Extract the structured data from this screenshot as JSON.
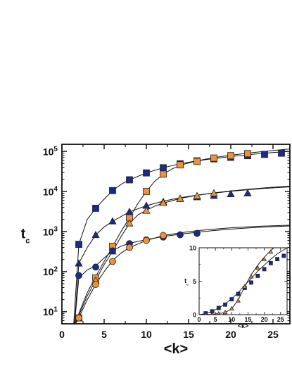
{
  "chart_data": [
    {
      "type": "scatter",
      "xlabel": "<k>",
      "ylabel_main": "t",
      "ylabel_sub": "c",
      "yscale": "log",
      "xlim": [
        0,
        27
      ],
      "ylim": [
        5,
        150000
      ],
      "x_ticks": [
        0,
        5,
        10,
        15,
        20,
        25
      ],
      "x_tick_labels": [
        "0",
        "5",
        "10",
        "15",
        "20",
        "25"
      ],
      "y_ticks": [
        10,
        100,
        1000,
        10000,
        100000
      ],
      "y_tick_labels": [
        {
          "base": "10",
          "exp": "1"
        },
        {
          "base": "10",
          "exp": "2"
        },
        {
          "base": "10",
          "exp": "3"
        },
        {
          "base": "10",
          "exp": "4"
        },
        {
          "base": "10",
          "exp": "5"
        }
      ],
      "series": [
        {
          "marker": "square",
          "color": "#1a2a8c",
          "points": [
            [
              2,
              480
            ],
            [
              4,
              3800
            ],
            [
              6,
              10500
            ],
            [
              8,
              19500
            ],
            [
              10,
              29000
            ],
            [
              12,
              39000
            ],
            [
              14,
              49000
            ],
            [
              16,
              58000
            ],
            [
              18,
              65000
            ],
            [
              20,
              71000
            ],
            [
              22,
              78000
            ],
            [
              24,
              84000
            ],
            [
              26,
              90000
            ]
          ]
        },
        {
          "marker": "square",
          "color": "#f0913a",
          "points": [
            [
              2,
              7
            ],
            [
              4,
              70
            ],
            [
              6,
              430
            ],
            [
              8,
              2200
            ],
            [
              10,
              10000
            ],
            [
              12,
              27000
            ],
            [
              14,
              46000
            ],
            [
              16,
              56000
            ],
            [
              18,
              68000
            ],
            [
              20,
              78000
            ],
            [
              22,
              88000
            ]
          ]
        },
        {
          "marker": "triangle",
          "color": "#1a2a8c",
          "points": [
            [
              2,
              160
            ],
            [
              4,
              820
            ],
            [
              6,
              1800
            ],
            [
              8,
              3100
            ],
            [
              10,
              4400
            ],
            [
              12,
              5500
            ],
            [
              14,
              6500
            ],
            [
              16,
              7200
            ],
            [
              18,
              7800
            ],
            [
              20,
              8600
            ],
            [
              22,
              9000
            ]
          ]
        },
        {
          "marker": "triangle",
          "color": "#f0913a",
          "points": [
            [
              2,
              7
            ],
            [
              4,
              60
            ],
            [
              6,
              320
            ],
            [
              8,
              1600
            ],
            [
              10,
              3300
            ],
            [
              12,
              5200
            ],
            [
              14,
              6600
            ],
            [
              16,
              7700
            ],
            [
              18,
              9000
            ]
          ]
        },
        {
          "marker": "circle",
          "color": "#1a2a8c",
          "points": [
            [
              2,
              80
            ],
            [
              4,
              130
            ],
            [
              6,
              330
            ],
            [
              8,
              500
            ],
            [
              10,
              620
            ],
            [
              12,
              730
            ],
            [
              14,
              830
            ],
            [
              16,
              900
            ]
          ]
        },
        {
          "marker": "circle",
          "color": "#f0913a",
          "points": [
            [
              2,
              7
            ],
            [
              4,
              48
            ],
            [
              6,
              180
            ],
            [
              8,
              400
            ],
            [
              10,
              600
            ],
            [
              12,
              800
            ]
          ]
        }
      ],
      "curves": [
        [
          [
            1.4,
            5
          ],
          [
            2,
            480
          ],
          [
            3,
            2000
          ],
          [
            4,
            3800
          ],
          [
            5,
            6400
          ],
          [
            6,
            10500
          ],
          [
            7,
            15000
          ],
          [
            8,
            19500
          ],
          [
            10,
            29000
          ],
          [
            12,
            39000
          ],
          [
            14,
            49000
          ],
          [
            16,
            58000
          ],
          [
            18,
            66000
          ],
          [
            20,
            74000
          ],
          [
            22,
            82000
          ],
          [
            24,
            90000
          ],
          [
            27,
            100000
          ]
        ],
        [
          [
            1.5,
            5
          ],
          [
            2,
            9
          ],
          [
            3,
            30
          ],
          [
            4,
            75
          ],
          [
            5,
            180
          ],
          [
            6,
            420
          ],
          [
            7,
            1000
          ],
          [
            8,
            2200
          ],
          [
            9,
            5000
          ],
          [
            10,
            10000
          ],
          [
            11,
            18000
          ],
          [
            12,
            27000
          ],
          [
            13,
            36000
          ],
          [
            14,
            45000
          ],
          [
            16,
            58000
          ],
          [
            18,
            70000
          ],
          [
            20,
            80000
          ],
          [
            22,
            90000
          ],
          [
            24,
            100000
          ],
          [
            27,
            115000
          ]
        ],
        [
          [
            1.5,
            5
          ],
          [
            2,
            160
          ],
          [
            3,
            400
          ],
          [
            4,
            820
          ],
          [
            5,
            1300
          ],
          [
            6,
            1800
          ],
          [
            8,
            3100
          ],
          [
            10,
            4400
          ],
          [
            12,
            5700
          ],
          [
            14,
            7000
          ],
          [
            16,
            8100
          ],
          [
            18,
            9100
          ],
          [
            20,
            10100
          ],
          [
            22,
            11000
          ],
          [
            24,
            11900
          ],
          [
            27,
            13000
          ]
        ],
        [
          [
            1.6,
            5
          ],
          [
            2,
            8
          ],
          [
            3,
            25
          ],
          [
            4,
            60
          ],
          [
            5,
            150
          ],
          [
            6,
            320
          ],
          [
            7,
            750
          ],
          [
            8,
            1600
          ],
          [
            9,
            2600
          ],
          [
            10,
            3400
          ],
          [
            11,
            4300
          ],
          [
            12,
            5100
          ],
          [
            14,
            6700
          ],
          [
            16,
            8000
          ],
          [
            18,
            9200
          ],
          [
            20,
            10300
          ],
          [
            22,
            11300
          ],
          [
            24,
            12300
          ],
          [
            27,
            13700
          ]
        ],
        [
          [
            1.5,
            5
          ],
          [
            2,
            70
          ],
          [
            3,
            110
          ],
          [
            4,
            140
          ],
          [
            5,
            220
          ],
          [
            6,
            330
          ],
          [
            7,
            430
          ],
          [
            8,
            510
          ],
          [
            10,
            630
          ],
          [
            12,
            750
          ],
          [
            14,
            860
          ],
          [
            16,
            960
          ],
          [
            18,
            1060
          ],
          [
            20,
            1150
          ],
          [
            22,
            1230
          ],
          [
            24,
            1300
          ],
          [
            27,
            1380
          ]
        ],
        [
          [
            1.6,
            5
          ],
          [
            2,
            7
          ],
          [
            3,
            20
          ],
          [
            4,
            48
          ],
          [
            5,
            100
          ],
          [
            6,
            190
          ],
          [
            7,
            290
          ],
          [
            8,
            400
          ],
          [
            10,
            600
          ],
          [
            12,
            790
          ],
          [
            14,
            930
          ],
          [
            16,
            1050
          ],
          [
            18,
            1150
          ],
          [
            20,
            1240
          ],
          [
            22,
            1310
          ],
          [
            24,
            1370
          ],
          [
            27,
            1440
          ]
        ]
      ]
    },
    {
      "type": "scatter",
      "inset": true,
      "xlabel": "<k>",
      "ylabel_main": "t",
      "ylabel_sub": "c",
      "xlim": [
        0,
        27
      ],
      "ylim": [
        0,
        10
      ],
      "x_ticks": [
        0,
        5,
        10,
        15,
        20,
        25
      ],
      "x_tick_labels": [
        "0",
        "5",
        "10",
        "15",
        "20",
        "25"
      ],
      "y_ticks": [
        0,
        5,
        10
      ],
      "y_tick_labels": [
        "0",
        "5",
        "10"
      ],
      "series": [
        {
          "marker": "square",
          "color": "#1a2a8c",
          "points": [
            [
              2,
              0.2
            ],
            [
              4,
              0.5
            ],
            [
              6,
              1.0
            ],
            [
              8,
              1.5
            ],
            [
              10,
              2.3
            ],
            [
              12,
              3.1
            ],
            [
              14,
              4.0
            ],
            [
              16,
              4.8
            ],
            [
              18,
              5.8
            ],
            [
              20,
              6.8
            ],
            [
              22,
              7.7
            ],
            [
              24,
              8.3
            ],
            [
              26,
              8.8
            ]
          ]
        },
        {
          "marker": "triangle",
          "color": "#f0913a",
          "points": [
            [
              2,
              0.0
            ],
            [
              4,
              0.05
            ],
            [
              6,
              0.15
            ],
            [
              8,
              0.35
            ],
            [
              10,
              0.9
            ],
            [
              12,
              2.1
            ],
            [
              14,
              4.2
            ],
            [
              16,
              5.7
            ],
            [
              18,
              7.0
            ],
            [
              20,
              8.3
            ],
            [
              22,
              9.4
            ]
          ]
        }
      ],
      "curves": [
        [
          [
            0,
            0
          ],
          [
            2,
            0.15
          ],
          [
            4,
            0.5
          ],
          [
            6,
            1.0
          ],
          [
            8,
            1.6
          ],
          [
            10,
            2.4
          ],
          [
            12,
            3.3
          ],
          [
            14,
            4.4
          ],
          [
            16,
            5.4
          ],
          [
            18,
            6.5
          ],
          [
            20,
            7.4
          ],
          [
            22,
            8.3
          ],
          [
            24,
            9.1
          ],
          [
            27,
            10.0
          ]
        ],
        [
          [
            0,
            0
          ],
          [
            4,
            0.05
          ],
          [
            8,
            0.3
          ],
          [
            10,
            0.9
          ],
          [
            12,
            2.2
          ],
          [
            14,
            4.2
          ],
          [
            16,
            6.0
          ],
          [
            18,
            7.4
          ],
          [
            20,
            8.6
          ],
          [
            22,
            9.6
          ],
          [
            23,
            10.0
          ]
        ]
      ]
    }
  ]
}
